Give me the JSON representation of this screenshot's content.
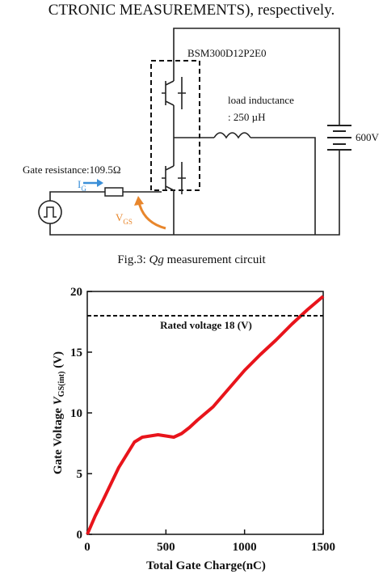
{
  "header_text": "CTRONIC MEASUREMENTS), respectively.",
  "circuit": {
    "module": "BSM300D12P2E0",
    "load_label": "load inductance",
    "load_value": ": 250 µH",
    "source_voltage": "600V",
    "gate_resistance": "Gate resistance:109.5Ω",
    "current_symbol": "I",
    "current_subscript": "G",
    "voltage_symbol": "V",
    "voltage_subscript": "GS"
  },
  "caption": {
    "prefix": "Fig.3: ",
    "emphasis": "Qg",
    "suffix": " measurement circuit"
  },
  "chart_data": {
    "type": "line",
    "x_label": "Total Gate Charge(nC)",
    "y_label": {
      "text": "Gate Voltage ",
      "symbol": "V",
      "subscript": "GS(int)",
      "unit": " (V)"
    },
    "x": [
      0,
      50,
      100,
      200,
      300,
      350,
      400,
      450,
      500,
      550,
      600,
      650,
      700,
      800,
      900,
      1000,
      1100,
      1200,
      1300,
      1400,
      1500
    ],
    "series": [
      {
        "name": "Gate voltage",
        "color": "#e8141b",
        "values": [
          0,
          1.5,
          2.8,
          5.5,
          7.6,
          8,
          8.1,
          8.2,
          8.1,
          8,
          8.3,
          8.8,
          9.4,
          10.5,
          12,
          13.5,
          14.8,
          16,
          17.3,
          18.5,
          19.6
        ]
      }
    ],
    "reference_line": {
      "value": 18,
      "label": "Rated voltage 18 (V)"
    },
    "xlim": [
      0,
      1500
    ],
    "ylim": [
      0,
      20
    ],
    "xticks": [
      0,
      500,
      1000,
      1500
    ],
    "yticks": [
      0,
      5,
      10,
      15,
      20
    ]
  }
}
